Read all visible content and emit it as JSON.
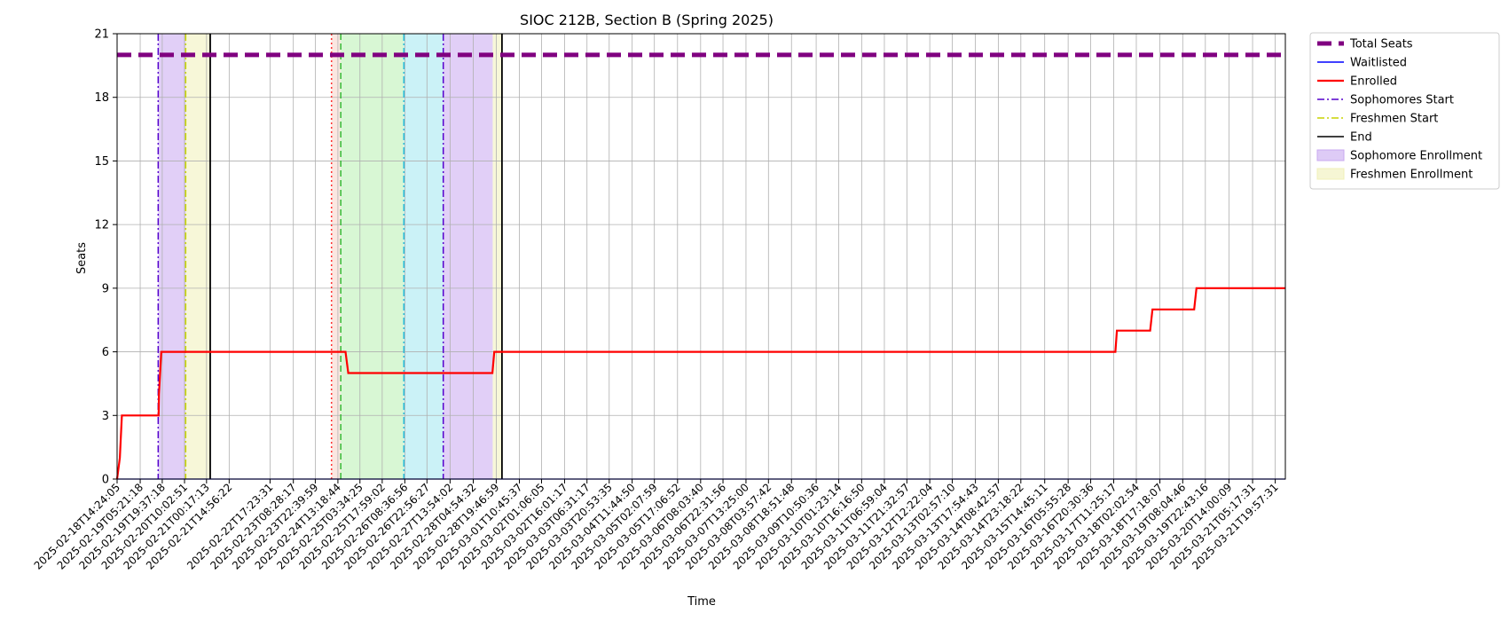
{
  "chart_data": {
    "type": "line",
    "title": "SIOC 212B, Section B (Spring 2025)",
    "xlabel": "Time",
    "ylabel": "Seats",
    "ylim": [
      0,
      21
    ],
    "yticks": [
      0,
      3,
      6,
      9,
      12,
      15,
      18,
      21
    ],
    "grid": true,
    "legend_position": "outside-right",
    "xlim": [
      "2025-02-18T14:24:05",
      "2025-03-22T02:30:00"
    ],
    "xticks": [
      "2025-02-18T14:24:05",
      "2025-02-19T05:21:18",
      "2025-02-19T19:37:18",
      "2025-02-20T10:02:51",
      "2025-02-21T00:17:13",
      "2025-02-21T14:56:22",
      "2025-02-22T17:23:31",
      "2025-02-23T08:28:17",
      "2025-02-23T22:39:59",
      "2025-02-24T13:18:44",
      "2025-02-25T03:34:25",
      "2025-02-25T17:59:02",
      "2025-02-26T08:36:56",
      "2025-02-26T22:56:27",
      "2025-02-27T13:54:02",
      "2025-02-28T04:54:32",
      "2025-02-28T19:46:59",
      "2025-03-01T10:45:37",
      "2025-03-02T01:06:05",
      "2025-03-02T16:01:17",
      "2025-03-03T06:31:17",
      "2025-03-03T20:53:35",
      "2025-03-04T11:44:50",
      "2025-03-05T02:07:59",
      "2025-03-05T17:06:52",
      "2025-03-06T08:03:40",
      "2025-03-06T22:31:56",
      "2025-03-07T13:25:00",
      "2025-03-08T03:57:42",
      "2025-03-08T18:51:48",
      "2025-03-09T10:50:36",
      "2025-03-10T01:23:14",
      "2025-03-10T16:16:50",
      "2025-03-11T06:59:04",
      "2025-03-11T21:32:57",
      "2025-03-12T12:22:04",
      "2025-03-13T02:57:10",
      "2025-03-13T17:54:43",
      "2025-03-14T08:42:57",
      "2025-03-14T23:18:22",
      "2025-03-15T14:45:11",
      "2025-03-16T05:55:28",
      "2025-03-16T20:30:36",
      "2025-03-17T11:25:17",
      "2025-03-18T02:02:54",
      "2025-03-18T17:18:07",
      "2025-03-19T08:04:46",
      "2025-03-19T22:43:16",
      "2025-03-20T14:00:09",
      "2025-03-21T05:17:31",
      "2025-03-21T19:57:31"
    ],
    "series": [
      {
        "name": "Total Seats",
        "color": "#800080",
        "style": "dashed-thick",
        "points": [
          [
            "2025-02-18T14:24:05",
            20
          ],
          [
            "2025-03-22T02:30:00",
            20
          ]
        ]
      },
      {
        "name": "Waitlisted",
        "color": "#0000ff",
        "style": "solid",
        "points": [
          [
            "2025-02-18T14:24:05",
            0
          ],
          [
            "2025-03-22T02:30:00",
            0
          ]
        ]
      },
      {
        "name": "Enrolled",
        "color": "#ff0000",
        "style": "step",
        "points": [
          [
            "2025-02-18T14:24:05",
            0
          ],
          [
            "2025-02-18T16:10:00",
            1
          ],
          [
            "2025-02-18T17:30:00",
            3
          ],
          [
            "2025-02-19T17:15:00",
            3
          ],
          [
            "2025-02-19T17:30:00",
            4
          ],
          [
            "2025-02-19T19:00:00",
            6
          ],
          [
            "2025-02-24T18:15:00",
            6
          ],
          [
            "2025-02-24T20:00:00",
            5
          ],
          [
            "2025-02-28T17:20:00",
            5
          ],
          [
            "2025-02-28T18:30:00",
            6
          ],
          [
            "2025-03-17T12:30:00",
            6
          ],
          [
            "2025-03-17T13:30:00",
            7
          ],
          [
            "2025-03-18T11:00:00",
            7
          ],
          [
            "2025-03-18T12:30:00",
            8
          ],
          [
            "2025-03-19T15:30:00",
            8
          ],
          [
            "2025-03-19T17:00:00",
            9
          ],
          [
            "2025-03-22T02:30:00",
            9
          ]
        ]
      }
    ],
    "vlines": [
      {
        "name": "Sophomores Start",
        "color": "#5500cc",
        "style": "dashdot",
        "x": "2025-02-19T17:00:00"
      },
      {
        "name": "Freshmen Start",
        "color": "#c8d400",
        "style": "dashdot",
        "x": "2025-02-20T10:48:00"
      },
      {
        "name": "End",
        "color": "#000000",
        "style": "solid",
        "x": "2025-02-21T02:40:00"
      },
      {
        "name": "",
        "color": "#ff3030",
        "style": "dotted",
        "x": "2025-02-24T09:10:00"
      },
      {
        "name": "",
        "color": "#33bb33",
        "style": "dashed",
        "x": "2025-02-24T15:10:00"
      },
      {
        "name": "",
        "color": "#22bbdd",
        "style": "dashdot",
        "x": "2025-02-26T08:00:00"
      },
      {
        "name": "",
        "color": "#5500cc",
        "style": "dashdot",
        "x": "2025-02-27T09:30:00"
      },
      {
        "name": "",
        "color": "#000000",
        "style": "solid",
        "x": "2025-02-28T23:30:00"
      }
    ],
    "bands": [
      {
        "name": "Sophomore Enrollment",
        "color": "#c8a8f0",
        "start": "2025-02-19T17:00:00",
        "end": "2025-02-20T10:48:00"
      },
      {
        "name": "Freshmen Enrollment",
        "color": "#f0f0b8",
        "start": "2025-02-20T10:48:00",
        "end": "2025-02-21T02:40:00"
      },
      {
        "name": "",
        "color": "#f8d4c8",
        "start": "2025-02-24T09:10:00",
        "end": "2025-02-24T15:10:00"
      },
      {
        "name": "",
        "color": "#b8f0b0",
        "start": "2025-02-24T15:10:00",
        "end": "2025-02-26T08:00:00"
      },
      {
        "name": "",
        "color": "#a0e8f0",
        "start": "2025-02-26T08:00:00",
        "end": "2025-02-27T09:30:00"
      },
      {
        "name": "",
        "color": "#c8a8f0",
        "start": "2025-02-27T09:30:00",
        "end": "2025-02-28T17:30:00"
      },
      {
        "name": "",
        "color": "#f0f0b8",
        "start": "2025-02-28T17:30:00",
        "end": "2025-02-28T23:30:00"
      }
    ],
    "legend": [
      {
        "label": "Total Seats",
        "kind": "line",
        "color": "#800080",
        "style": "dashed-thick"
      },
      {
        "label": "Waitlisted",
        "kind": "line",
        "color": "#0000ff",
        "style": "solid"
      },
      {
        "label": "Enrolled",
        "kind": "line",
        "color": "#ff0000",
        "style": "solid-thick"
      },
      {
        "label": "Sophomores Start",
        "kind": "line",
        "color": "#5500cc",
        "style": "dashdot"
      },
      {
        "label": "Freshmen Start",
        "kind": "line",
        "color": "#c8d400",
        "style": "dashdot"
      },
      {
        "label": "End",
        "kind": "line",
        "color": "#000000",
        "style": "solid"
      },
      {
        "label": "Sophomore Enrollment",
        "kind": "patch",
        "color": "#c8a8f0"
      },
      {
        "label": "Freshmen Enrollment",
        "kind": "patch",
        "color": "#f0f0b8"
      }
    ]
  }
}
